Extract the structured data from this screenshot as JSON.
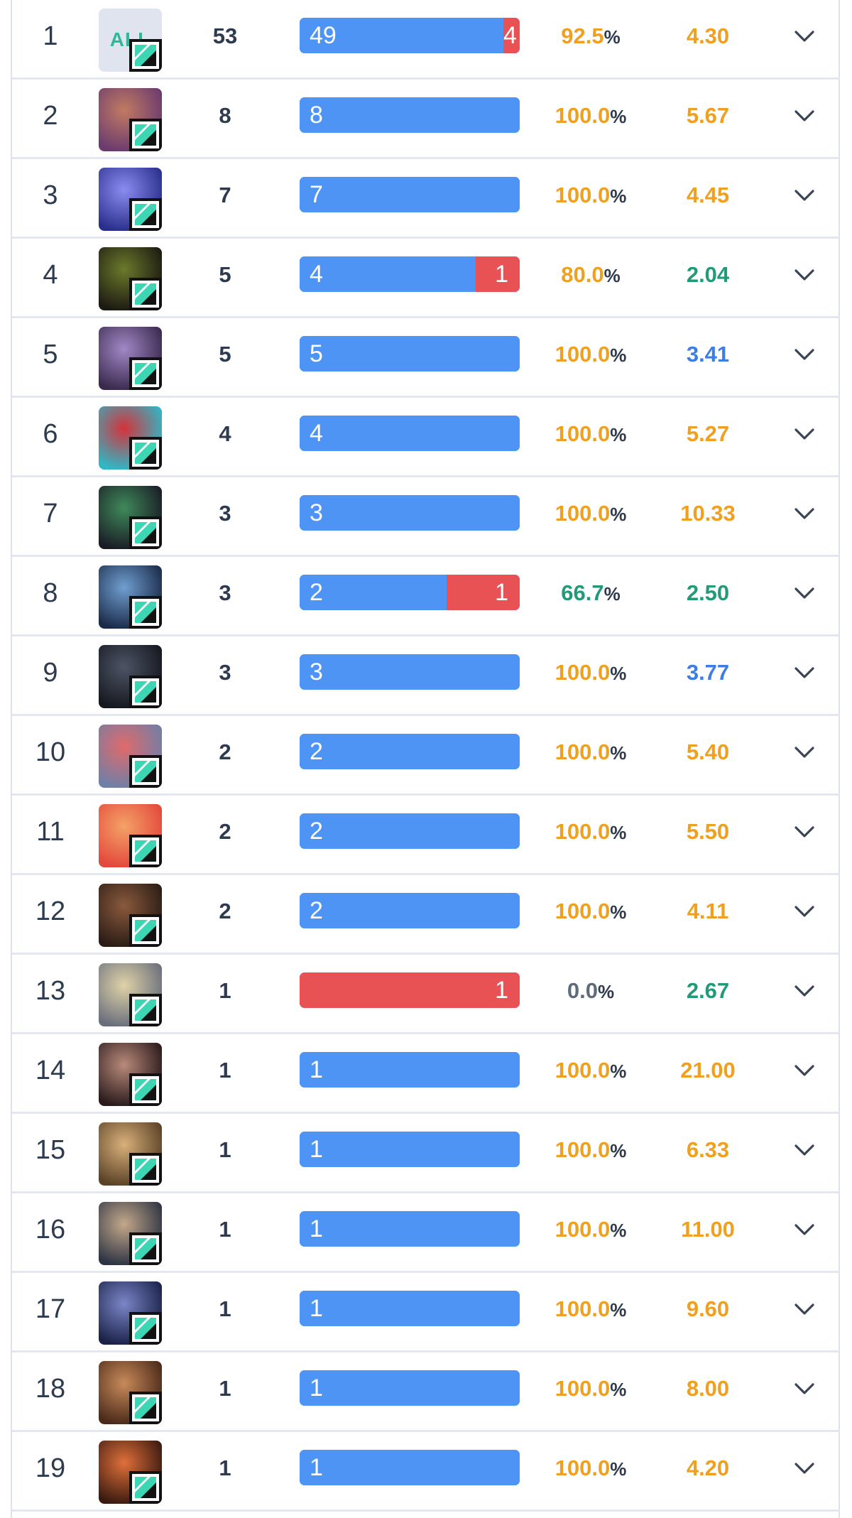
{
  "colors": {
    "win_bar": "#4d94f5",
    "loss_bar": "#e95255",
    "orange": "#f0a020",
    "green": "#229a7a",
    "blue": "#3d7ee6",
    "gray": "#5f6b7d"
  },
  "rows": [
    {
      "rank": "1",
      "avatar": "all-champions-avatar",
      "avatar_text": "ALL",
      "games": "53",
      "wins": 49,
      "losses": 4,
      "win_label": "49",
      "loss_label": "4",
      "winrate": "92.5",
      "winrate_color": "orange",
      "kda": "4.30",
      "kda_color": "orange",
      "art": [
        "#c8ceda",
        "#e8ecf3"
      ]
    },
    {
      "rank": "2",
      "avatar": "champion-avatar",
      "games": "8",
      "wins": 8,
      "losses": 0,
      "win_label": "8",
      "loss_label": "",
      "winrate": "100.0",
      "winrate_color": "orange",
      "kda": "5.67",
      "kda_color": "orange",
      "art": [
        "#6a3b6e",
        "#c27a62"
      ]
    },
    {
      "rank": "3",
      "avatar": "champion-avatar",
      "games": "7",
      "wins": 7,
      "losses": 0,
      "win_label": "7",
      "loss_label": "",
      "winrate": "100.0",
      "winrate_color": "orange",
      "kda": "4.45",
      "kda_color": "orange",
      "art": [
        "#2a2f8c",
        "#8b8cf0"
      ]
    },
    {
      "rank": "4",
      "avatar": "champion-avatar",
      "games": "5",
      "wins": 4,
      "losses": 1,
      "win_label": "4",
      "loss_label": "1",
      "winrate": "80.0",
      "winrate_color": "orange",
      "kda": "2.04",
      "kda_color": "green",
      "art": [
        "#1d1a12",
        "#6b7a2a"
      ]
    },
    {
      "rank": "5",
      "avatar": "champion-avatar",
      "games": "5",
      "wins": 5,
      "losses": 0,
      "win_label": "5",
      "loss_label": "",
      "winrate": "100.0",
      "winrate_color": "orange",
      "kda": "3.41",
      "kda_color": "blue",
      "art": [
        "#3a2a4e",
        "#a288c6"
      ]
    },
    {
      "rank": "6",
      "avatar": "champion-avatar",
      "games": "4",
      "wins": 4,
      "losses": 0,
      "win_label": "4",
      "loss_label": "",
      "winrate": "100.0",
      "winrate_color": "orange",
      "kda": "5.27",
      "kda_color": "orange",
      "art": [
        "#2fb7c6",
        "#d5323a"
      ]
    },
    {
      "rank": "7",
      "avatar": "champion-avatar",
      "games": "3",
      "wins": 3,
      "losses": 0,
      "win_label": "3",
      "loss_label": "",
      "winrate": "100.0",
      "winrate_color": "orange",
      "kda": "10.33",
      "kda_color": "orange",
      "art": [
        "#1a1c26",
        "#3f8a5a"
      ]
    },
    {
      "rank": "8",
      "avatar": "champion-avatar",
      "games": "3",
      "wins": 2,
      "losses": 1,
      "win_label": "2",
      "loss_label": "1",
      "winrate": "66.7",
      "winrate_color": "green",
      "kda": "2.50",
      "kda_color": "green",
      "art": [
        "#1c2b4a",
        "#6f9fd0"
      ]
    },
    {
      "rank": "9",
      "avatar": "champion-avatar",
      "games": "3",
      "wins": 3,
      "losses": 0,
      "win_label": "3",
      "loss_label": "",
      "winrate": "100.0",
      "winrate_color": "orange",
      "kda": "3.77",
      "kda_color": "blue",
      "art": [
        "#16181f",
        "#4d5466"
      ]
    },
    {
      "rank": "10",
      "avatar": "champion-avatar",
      "games": "2",
      "wins": 2,
      "losses": 0,
      "win_label": "2",
      "loss_label": "",
      "winrate": "100.0",
      "winrate_color": "orange",
      "kda": "5.40",
      "kda_color": "orange",
      "art": [
        "#6f7fa8",
        "#e06a6a"
      ]
    },
    {
      "rank": "11",
      "avatar": "champion-avatar",
      "games": "2",
      "wins": 2,
      "losses": 0,
      "win_label": "2",
      "loss_label": "",
      "winrate": "100.0",
      "winrate_color": "orange",
      "kda": "5.50",
      "kda_color": "orange",
      "art": [
        "#e3483c",
        "#f4a267"
      ]
    },
    {
      "rank": "12",
      "avatar": "champion-avatar",
      "games": "2",
      "wins": 2,
      "losses": 0,
      "win_label": "2",
      "loss_label": "",
      "winrate": "100.0",
      "winrate_color": "orange",
      "kda": "4.11",
      "kda_color": "orange",
      "art": [
        "#2b1c16",
        "#8a5a3c"
      ]
    },
    {
      "rank": "13",
      "avatar": "champion-avatar",
      "games": "1",
      "wins": 0,
      "losses": 1,
      "win_label": "",
      "loss_label": "1",
      "winrate": "0.0",
      "winrate_color": "gray",
      "kda": "2.67",
      "kda_color": "green",
      "art": [
        "#6a6f7c",
        "#e0d2a8"
      ]
    },
    {
      "rank": "14",
      "avatar": "champion-avatar",
      "games": "1",
      "wins": 1,
      "losses": 0,
      "win_label": "1",
      "loss_label": "",
      "winrate": "100.0",
      "winrate_color": "orange",
      "kda": "21.00",
      "kda_color": "orange",
      "art": [
        "#2a1a1c",
        "#b98a7a"
      ]
    },
    {
      "rank": "15",
      "avatar": "champion-avatar",
      "games": "1",
      "wins": 1,
      "losses": 0,
      "win_label": "1",
      "loss_label": "",
      "winrate": "100.0",
      "winrate_color": "orange",
      "kda": "6.33",
      "kda_color": "orange",
      "art": [
        "#5a4228",
        "#d9b07a"
      ]
    },
    {
      "rank": "16",
      "avatar": "champion-avatar",
      "games": "1",
      "wins": 1,
      "losses": 0,
      "win_label": "1",
      "loss_label": "",
      "winrate": "100.0",
      "winrate_color": "orange",
      "kda": "11.00",
      "kda_color": "orange",
      "art": [
        "#2e3444",
        "#c4a88a"
      ]
    },
    {
      "rank": "17",
      "avatar": "champion-avatar",
      "games": "1",
      "wins": 1,
      "losses": 0,
      "win_label": "1",
      "loss_label": "",
      "winrate": "100.0",
      "winrate_color": "orange",
      "kda": "9.60",
      "kda_color": "orange",
      "art": [
        "#1b2248",
        "#7b86c8"
      ]
    },
    {
      "rank": "18",
      "avatar": "champion-avatar",
      "games": "1",
      "wins": 1,
      "losses": 0,
      "win_label": "1",
      "loss_label": "",
      "winrate": "100.0",
      "winrate_color": "orange",
      "kda": "8.00",
      "kda_color": "orange",
      "art": [
        "#4a2a1a",
        "#c98a5a"
      ]
    },
    {
      "rank": "19",
      "avatar": "champion-avatar",
      "games": "1",
      "wins": 1,
      "losses": 0,
      "win_label": "1",
      "loss_label": "",
      "winrate": "100.0",
      "winrate_color": "orange",
      "kda": "4.20",
      "kda_color": "orange",
      "art": [
        "#3a1a10",
        "#e0703a"
      ]
    }
  ]
}
